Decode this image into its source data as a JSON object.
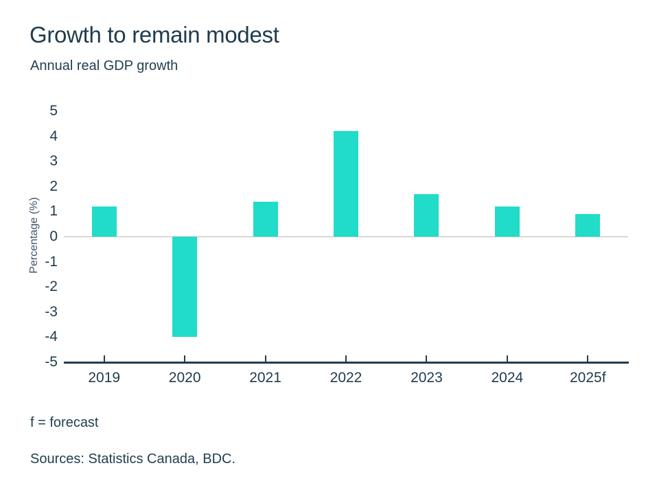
{
  "header": {
    "title": "Growth to remain modest",
    "subtitle": "Annual real GDP growth"
  },
  "chart_data": {
    "type": "bar",
    "categories": [
      "2019",
      "2020",
      "2021",
      "2022",
      "2023",
      "2024",
      "2025f"
    ],
    "values": [
      1.2,
      -4.0,
      1.4,
      4.2,
      1.7,
      1.2,
      0.9
    ],
    "title": "Growth to remain modest",
    "subtitle": "Annual real GDP growth",
    "xlabel": "",
    "ylabel": "Percentage (%)",
    "ylim": [
      -5,
      5
    ],
    "ytick_step": 1,
    "grid": "zero-line-only",
    "legend": "none",
    "bar_color": "#20dcc8",
    "axis_color": "#253a4b",
    "zero_line_color": "#dbd8d2",
    "text_color": "#1f3b4d"
  },
  "footer": {
    "footnote": "f = forecast",
    "source": "Sources: Statistics Canada, BDC."
  }
}
